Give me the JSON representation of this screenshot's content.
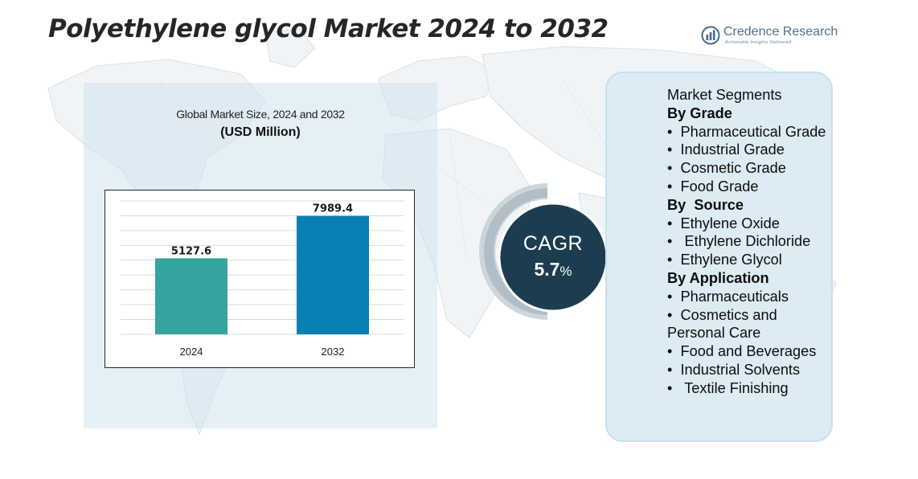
{
  "title": "Polyethylene glycol Market 2024 to 2032",
  "brand": {
    "name": "Credence Research",
    "tagline": "Actionable Insights Delivered"
  },
  "colors": {
    "bar_2024": "#34a59e",
    "bar_2032": "#0a7fb4",
    "cagr_circle": "#1c3d4f",
    "panel": "#dcebf4"
  },
  "chart_data": {
    "type": "bar",
    "title": "Global Market Size, 2024 and 2032",
    "subtitle": "(USD Million)",
    "categories": [
      "2024",
      "2032"
    ],
    "values": [
      5127.6,
      7989.4
    ],
    "value_labels": [
      "5127.6",
      "7989.4"
    ],
    "ylim": [
      0,
      9000
    ],
    "grid": true,
    "legend": "none"
  },
  "cagr": {
    "label": "CAGR",
    "value": "5.7",
    "unit": "%"
  },
  "segments": [
    {
      "text": "Market Segments",
      "type": "header"
    },
    {
      "text": "By Grade",
      "type": "group"
    },
    {
      "text": "•  Pharmaceutical Grade",
      "type": "item"
    },
    {
      "text": "•  Industrial Grade",
      "type": "item"
    },
    {
      "text": "•  Cosmetic Grade",
      "type": "item"
    },
    {
      "text": "•  Food Grade",
      "type": "item"
    },
    {
      "text": "By  Source",
      "type": "group"
    },
    {
      "text": "•  Ethylene Oxide",
      "type": "item"
    },
    {
      "text": "•   Ethylene Dichloride",
      "type": "item"
    },
    {
      "text": "•  Ethylene Glycol",
      "type": "item"
    },
    {
      "text": "By Application",
      "type": "group"
    },
    {
      "text": "•  Pharmaceuticals",
      "type": "item"
    },
    {
      "text": "•  Cosmetics and Personal Care",
      "type": "item"
    },
    {
      "text": "•  Food and Beverages",
      "type": "item"
    },
    {
      "text": "•  Industrial Solvents",
      "type": "item"
    },
    {
      "text": "•   Textile Finishing",
      "type": "item"
    }
  ]
}
